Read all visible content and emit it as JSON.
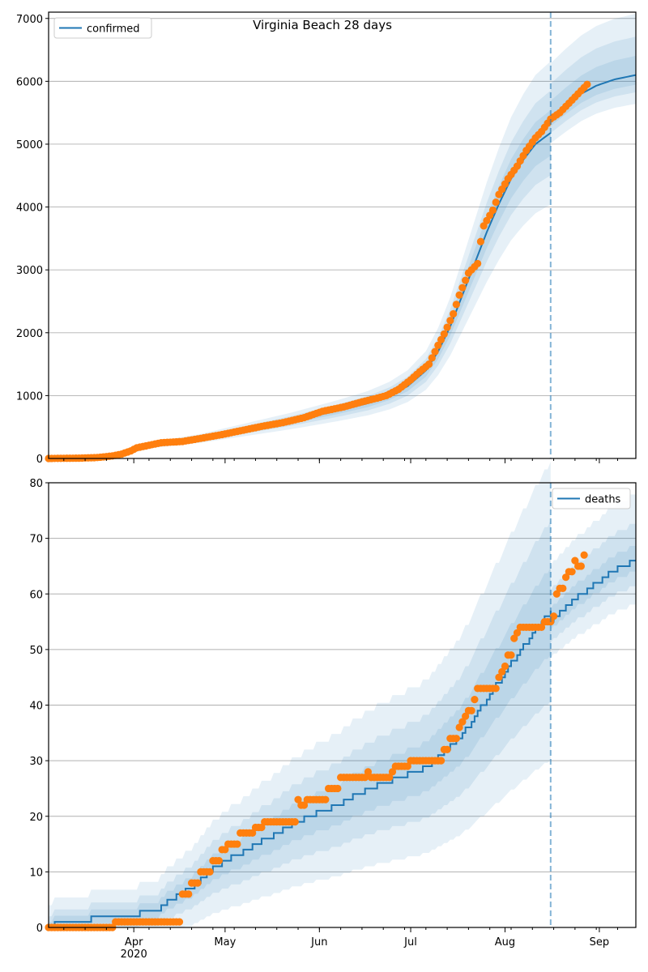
{
  "chart_data": [
    {
      "type": "line",
      "title": "Virginia Beach 28 days",
      "x_start_date": "2020-03-04",
      "x_unit": "days since x_start_date",
      "xlim": [
        0,
        193
      ],
      "ylim": [
        0,
        7100
      ],
      "yticks": [
        0,
        1000,
        2000,
        3000,
        4000,
        5000,
        6000,
        7000
      ],
      "grid": "horizontal",
      "legend": {
        "label": "confirmed",
        "placement": "top-left"
      },
      "forecast_start_day": 165,
      "observed_points": [
        [
          0,
          0
        ],
        [
          10,
          5
        ],
        [
          16,
          15
        ],
        [
          21,
          40
        ],
        [
          24,
          70
        ],
        [
          27,
          120
        ],
        [
          29,
          170
        ],
        [
          33,
          210
        ],
        [
          37,
          250
        ],
        [
          44,
          270
        ],
        [
          50,
          320
        ],
        [
          57,
          380
        ],
        [
          64,
          450
        ],
        [
          70,
          510
        ],
        [
          77,
          570
        ],
        [
          84,
          650
        ],
        [
          90,
          750
        ],
        [
          97,
          820
        ],
        [
          103,
          900
        ],
        [
          108,
          960
        ],
        [
          111,
          1000
        ],
        [
          115,
          1100
        ],
        [
          119,
          1250
        ],
        [
          122,
          1380
        ],
        [
          125,
          1500
        ],
        [
          128,
          1800
        ],
        [
          130,
          1980
        ],
        [
          133,
          2300
        ],
        [
          135,
          2600
        ],
        [
          138,
          2950
        ],
        [
          141,
          3100
        ],
        [
          142,
          3450
        ],
        [
          143,
          3700
        ],
        [
          146,
          3950
        ],
        [
          148,
          4200
        ],
        [
          151,
          4450
        ],
        [
          154,
          4650
        ],
        [
          157,
          4900
        ],
        [
          160,
          5100
        ],
        [
          162,
          5200
        ],
        [
          165,
          5400
        ],
        [
          168,
          5500
        ],
        [
          170,
          5600
        ],
        [
          173,
          5750
        ],
        [
          177,
          5950
        ]
      ],
      "model_fit": [
        [
          0,
          0
        ],
        [
          20,
          20
        ],
        [
          28,
          120
        ],
        [
          35,
          220
        ],
        [
          50,
          320
        ],
        [
          65,
          460
        ],
        [
          80,
          600
        ],
        [
          95,
          760
        ],
        [
          105,
          880
        ],
        [
          112,
          1000
        ],
        [
          118,
          1150
        ],
        [
          124,
          1400
        ],
        [
          128,
          1700
        ],
        [
          132,
          2100
        ],
        [
          136,
          2600
        ],
        [
          140,
          3100
        ],
        [
          144,
          3600
        ],
        [
          148,
          4050
        ],
        [
          152,
          4450
        ],
        [
          156,
          4750
        ],
        [
          160,
          5000
        ],
        [
          165,
          5180
        ]
      ],
      "model_forecast": [
        [
          165,
          5420
        ],
        [
          170,
          5620
        ],
        [
          175,
          5800
        ],
        [
          180,
          5930
        ],
        [
          186,
          6030
        ],
        [
          193,
          6100
        ]
      ],
      "band_fit_rel": [
        0.07,
        0.13,
        0.22
      ],
      "band_forecast_rel_low": [
        0.025,
        0.045,
        0.075
      ],
      "band_forecast_rel_high": [
        0.05,
        0.1,
        0.16
      ],
      "colors": {
        "model": "#1f77b4",
        "observed": "#ff7f0e",
        "band": "#1f77b4"
      }
    },
    {
      "type": "line",
      "x_start_date": "2020-03-04",
      "xlim": [
        0,
        193
      ],
      "ylim": [
        0,
        80
      ],
      "yticks": [
        0,
        10,
        20,
        30,
        40,
        50,
        60,
        70,
        80
      ],
      "xticks": [
        {
          "day": 28,
          "label": "Apr",
          "sublabel": "2020"
        },
        {
          "day": 58,
          "label": "May"
        },
        {
          "day": 89,
          "label": "Jun"
        },
        {
          "day": 119,
          "label": "Jul"
        },
        {
          "day": 150,
          "label": "Aug"
        },
        {
          "day": 181,
          "label": "Sep"
        }
      ],
      "grid": "horizontal",
      "legend": {
        "label": "deaths",
        "placement": "top-right"
      },
      "forecast_start_day": 165,
      "observed_runs_value_days": [
        [
          0,
          22
        ],
        [
          1,
          22
        ],
        [
          6,
          3
        ],
        [
          8,
          3
        ],
        [
          10,
          4
        ],
        [
          12,
          3
        ],
        [
          14,
          2
        ],
        [
          15,
          4
        ],
        [
          17,
          5
        ],
        [
          18,
          3
        ],
        [
          19,
          11
        ],
        [
          23,
          1
        ],
        [
          22,
          2
        ],
        [
          23,
          7
        ],
        [
          25,
          4
        ],
        [
          27,
          9
        ],
        [
          28,
          1
        ],
        [
          27,
          7
        ],
        [
          28,
          1
        ],
        [
          29,
          5
        ],
        [
          30,
          11
        ],
        [
          32,
          2
        ],
        [
          34,
          3
        ],
        [
          36,
          1
        ],
        [
          37,
          1
        ],
        [
          38,
          1
        ],
        [
          39,
          2
        ],
        [
          41,
          1
        ],
        [
          43,
          7
        ],
        [
          45,
          1
        ],
        [
          46,
          1
        ],
        [
          47,
          1
        ],
        [
          49,
          2
        ],
        [
          52,
          1
        ],
        [
          53,
          1
        ],
        [
          54,
          8
        ],
        [
          55,
          3
        ],
        [
          56,
          1
        ],
        [
          60,
          1
        ],
        [
          61,
          2
        ],
        [
          63,
          1
        ],
        [
          64,
          2
        ],
        [
          66,
          1
        ],
        [
          65,
          2
        ],
        [
          67,
          1
        ]
      ],
      "model_fit": [
        [
          0,
          0
        ],
        [
          4,
          1
        ],
        [
          24,
          2
        ],
        [
          35,
          3
        ],
        [
          40,
          5
        ],
        [
          46,
          7
        ],
        [
          55,
          11
        ],
        [
          65,
          14
        ],
        [
          75,
          17
        ],
        [
          85,
          20
        ],
        [
          95,
          22
        ],
        [
          105,
          25
        ],
        [
          115,
          27
        ],
        [
          125,
          29
        ],
        [
          135,
          34
        ],
        [
          145,
          42
        ],
        [
          155,
          50
        ],
        [
          165,
          57
        ]
      ],
      "model_forecast": [
        [
          165,
          55
        ],
        [
          175,
          60
        ],
        [
          185,
          64
        ],
        [
          193,
          66
        ]
      ],
      "band_fit_rel": [
        0.12,
        0.25,
        0.4
      ],
      "band_fit_abs": [
        1,
        2,
        4
      ],
      "band_forecast_rel_low": [
        0.03,
        0.07,
        0.12
      ],
      "band_forecast_rel_high": [
        0.04,
        0.1,
        0.18
      ],
      "colors": {
        "model": "#1f77b4",
        "observed": "#ff7f0e",
        "band": "#1f77b4"
      }
    }
  ]
}
